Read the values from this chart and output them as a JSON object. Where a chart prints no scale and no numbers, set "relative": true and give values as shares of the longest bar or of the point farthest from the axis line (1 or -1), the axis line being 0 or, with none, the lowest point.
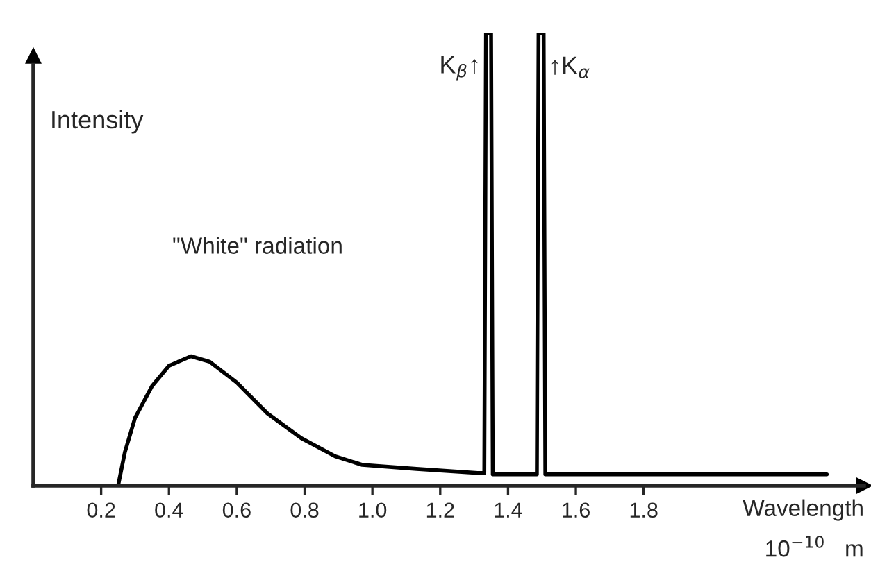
{
  "chart_data": {
    "type": "line",
    "relative": true,
    "xlabel": "Wavelength",
    "ylabel": "Intensity",
    "x": [
      0.25,
      0.27,
      0.3,
      0.35,
      0.4,
      0.465,
      0.52,
      0.6,
      0.69,
      0.79,
      0.89,
      0.97,
      1.13,
      1.31,
      1.33,
      1.335,
      1.35,
      1.355,
      1.485,
      1.49,
      1.505,
      1.51,
      1.55,
      2.34
    ],
    "series": [
      {
        "color": "#000000",
        "values": [
          0,
          0.074,
          0.15,
          0.22,
          0.265,
          0.286,
          0.274,
          0.228,
          0.16,
          0.105,
          0.065,
          0.046,
          0.037,
          0.028,
          0.028,
          1,
          1,
          0.025,
          0.025,
          1,
          1,
          0.025,
          0.025,
          0.025
        ]
      }
    ],
    "xlim": [
      0,
      2.45
    ],
    "xticks": [
      {
        "value": 0.2,
        "label": "0.2"
      },
      {
        "value": 0.4,
        "label": "0.4"
      },
      {
        "value": 0.6,
        "label": "0.6"
      },
      {
        "value": 0.8,
        "label": "0.8"
      },
      {
        "value": 1.0,
        "label": "1.0"
      },
      {
        "value": 1.2,
        "label": "1.2"
      },
      {
        "value": 1.4,
        "label": "1.4"
      },
      {
        "value": 1.6,
        "label": "1.6"
      },
      {
        "value": 1.8,
        "label": "1.8"
      }
    ],
    "annotations": [
      "\"White\" radiation",
      {
        "text": "K$_{β}$↑",
        "x": 1.335,
        "y": 1
      },
      {
        "text": "↑K$_{α}$",
        "x": 1.505,
        "y": 1
      },
      "10$^{−10}$   m"
    ],
    "grid": false,
    "legend": false,
    "marker": "none",
    "line_style": "solid"
  }
}
